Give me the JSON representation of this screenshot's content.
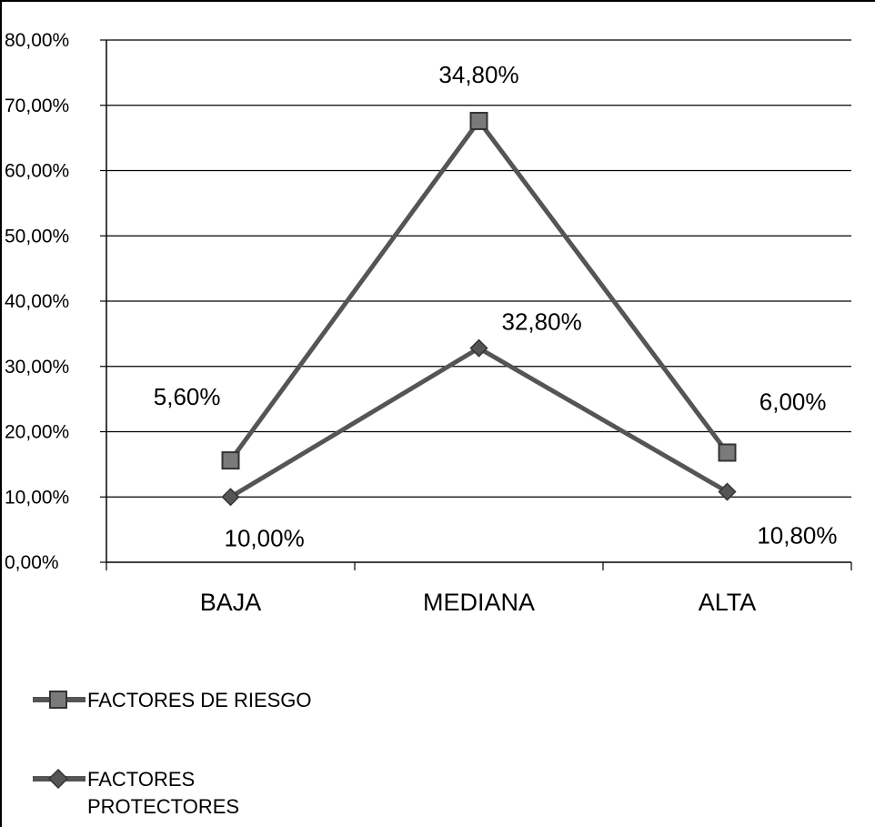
{
  "chart_data": {
    "type": "line",
    "categories": [
      "BAJA",
      "MEDIANA",
      "ALTA"
    ],
    "ylim": [
      0,
      0.8
    ],
    "yticks": [
      "0,00%",
      "10,00%",
      "20,00%",
      "30,00%",
      "40,00%",
      "50,00%",
      "60,00%",
      "70,00%",
      "80,00%"
    ],
    "grid": true,
    "legend_position": "bottom-left",
    "series": [
      {
        "name": "FACTORES DE RIESGO",
        "marker": "square",
        "values": [
          0.156,
          0.676,
          0.168
        ],
        "data_labels": [
          "5,60%",
          "34,80%",
          "6,00%"
        ]
      },
      {
        "name": "FACTORES PROTECTORES",
        "marker": "diamond",
        "values": [
          0.1,
          0.328,
          0.108
        ],
        "data_labels": [
          "10,00%",
          "32,80%",
          "10,80%"
        ]
      }
    ],
    "colors": {
      "line": "#555555",
      "marker_fill": "#7a7a7a",
      "axis": "#000000"
    }
  },
  "legend": {
    "riesgo_label": "FACTORES DE RIESGO",
    "protectores_line1": "FACTORES",
    "protectores_line2": "PROTECTORES"
  }
}
